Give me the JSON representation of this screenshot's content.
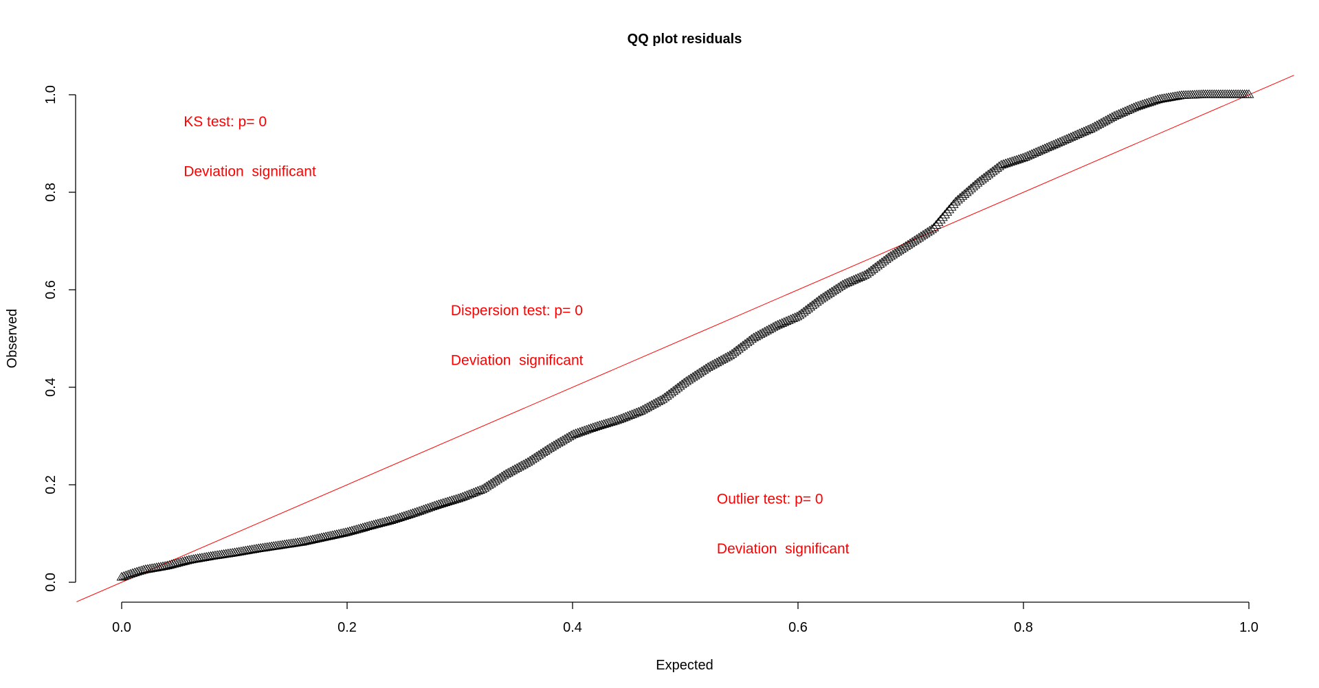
{
  "chart_data": {
    "type": "scatter",
    "title": "QQ plot residuals",
    "xlabel": "Expected",
    "ylabel": "Observed",
    "xlim": [
      0,
      1
    ],
    "ylim": [
      0,
      1
    ],
    "x_ticks": [
      "0.0",
      "0.2",
      "0.4",
      "0.6",
      "0.8",
      "1.0"
    ],
    "y_ticks": [
      "0.0",
      "0.2",
      "0.4",
      "0.6",
      "0.8",
      "1.0"
    ],
    "marker": "triangle",
    "reference_line": {
      "slope": 1,
      "intercept": 0,
      "color": "#ff0000"
    },
    "curve": {
      "x": [
        0,
        0.01,
        0.02,
        0.04,
        0.06,
        0.08,
        0.1,
        0.12,
        0.14,
        0.16,
        0.18,
        0.2,
        0.22,
        0.24,
        0.26,
        0.28,
        0.3,
        0.32,
        0.34,
        0.36,
        0.38,
        0.4,
        0.42,
        0.44,
        0.46,
        0.48,
        0.5,
        0.52,
        0.54,
        0.56,
        0.58,
        0.6,
        0.62,
        0.64,
        0.66,
        0.68,
        0.7,
        0.72,
        0.74,
        0.76,
        0.78,
        0.8,
        0.82,
        0.84,
        0.86,
        0.88,
        0.9,
        0.92,
        0.94,
        0.96,
        0.98,
        1.0
      ],
      "y": [
        0.01,
        0.018,
        0.025,
        0.033,
        0.045,
        0.053,
        0.06,
        0.068,
        0.075,
        0.082,
        0.092,
        0.102,
        0.115,
        0.127,
        0.142,
        0.158,
        0.172,
        0.19,
        0.22,
        0.245,
        0.275,
        0.302,
        0.318,
        0.332,
        0.35,
        0.375,
        0.41,
        0.44,
        0.465,
        0.5,
        0.525,
        0.545,
        0.58,
        0.61,
        0.63,
        0.665,
        0.695,
        0.725,
        0.78,
        0.82,
        0.855,
        0.87,
        0.89,
        0.91,
        0.93,
        0.955,
        0.975,
        0.99,
        0.998,
        1.0,
        1.0,
        1.0
      ]
    },
    "annotations": [
      {
        "text": "KS test: p= 0",
        "x": 0.055,
        "y": 0.935
      },
      {
        "text": "Deviation  significant",
        "x": 0.055,
        "y": 0.833
      },
      {
        "text": "Dispersion test: p= 0",
        "x": 0.292,
        "y": 0.548
      },
      {
        "text": "Deviation  significant",
        "x": 0.292,
        "y": 0.446
      },
      {
        "text": "Outlier test: p= 0",
        "x": 0.528,
        "y": 0.161
      },
      {
        "text": "Deviation  significant",
        "x": 0.528,
        "y": 0.059
      }
    ]
  }
}
